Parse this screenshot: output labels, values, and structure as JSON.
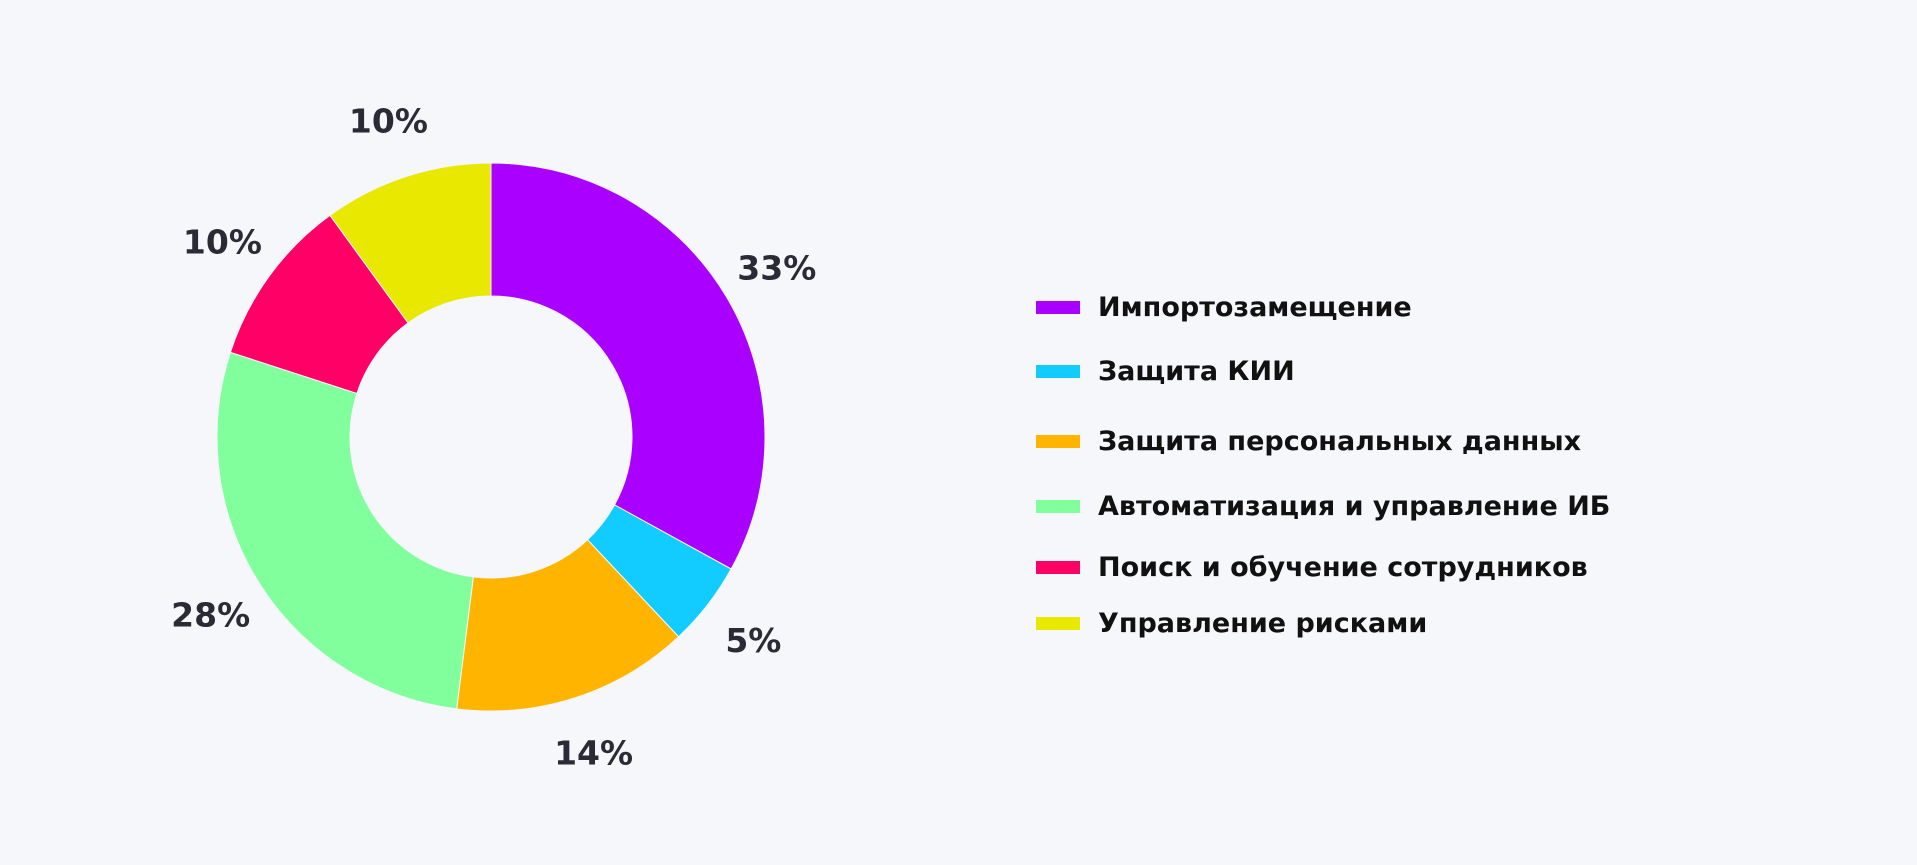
{
  "chart_data": {
    "type": "pie",
    "categories": [
      "Импортозамещение",
      "Защита КИИ",
      "Защита персональных данных",
      "Автоматизация и управление ИБ",
      "Поиск и обучение сотрудников",
      "Управление рисками"
    ],
    "values": [
      33,
      5,
      14,
      28,
      10,
      10
    ],
    "labels": [
      "33%",
      "5%",
      "14%",
      "28%",
      "10%",
      "10%"
    ],
    "colors": [
      "#aa00ff",
      "#12ccff",
      "#ffb500",
      "#80ff9c",
      "#ff0066",
      "#e8e800"
    ],
    "donut": true,
    "legend_position": "right"
  }
}
